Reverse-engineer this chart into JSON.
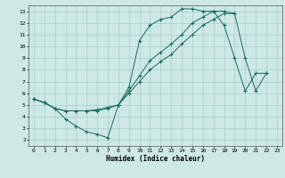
{
  "title": "",
  "xlabel": "Humidex (Indice chaleur)",
  "ylabel": "",
  "background_color": "#cde8e5",
  "grid_color": "#a8ceca",
  "line_color": "#1a6b60",
  "xlim": [
    -0.5,
    23.5
  ],
  "ylim": [
    1.5,
    13.5
  ],
  "xticks": [
    0,
    1,
    2,
    3,
    4,
    5,
    6,
    7,
    8,
    9,
    10,
    11,
    12,
    13,
    14,
    15,
    16,
    17,
    18,
    19,
    20,
    21,
    22,
    23
  ],
  "yticks": [
    2,
    3,
    4,
    5,
    6,
    7,
    8,
    9,
    10,
    11,
    12,
    13
  ],
  "line1_x": [
    0,
    1,
    2,
    3,
    4,
    5,
    6,
    7,
    8,
    9,
    10,
    11,
    12,
    13,
    14,
    15,
    16,
    17,
    18,
    19,
    20,
    21,
    22
  ],
  "line1_y": [
    5.5,
    5.2,
    4.7,
    3.8,
    3.2,
    2.7,
    2.5,
    2.2,
    5.0,
    6.5,
    10.5,
    11.8,
    12.3,
    12.5,
    13.2,
    13.2,
    13.0,
    13.0,
    13.0,
    12.8,
    9.0,
    6.2,
    7.7
  ],
  "line2_x": [
    0,
    1,
    2,
    3,
    4,
    5,
    6,
    7,
    8,
    9,
    10,
    11,
    12,
    13,
    14,
    15,
    16,
    17,
    18,
    19
  ],
  "line2_y": [
    5.5,
    5.2,
    4.7,
    4.5,
    4.5,
    4.5,
    4.6,
    4.8,
    5.0,
    6.0,
    7.0,
    8.0,
    8.7,
    9.3,
    10.2,
    11.0,
    11.8,
    12.3,
    12.8,
    12.8
  ],
  "line3_x": [
    0,
    1,
    2,
    3,
    4,
    5,
    6,
    7,
    8,
    9,
    10,
    11,
    12,
    13,
    14,
    15,
    16,
    17,
    18,
    19,
    20,
    21,
    22
  ],
  "line3_y": [
    5.5,
    5.2,
    4.7,
    4.5,
    4.5,
    4.5,
    4.5,
    4.7,
    5.0,
    6.2,
    7.5,
    8.8,
    9.5,
    10.2,
    11.0,
    12.0,
    12.5,
    13.0,
    11.8,
    9.0,
    6.2,
    7.7,
    7.7
  ]
}
